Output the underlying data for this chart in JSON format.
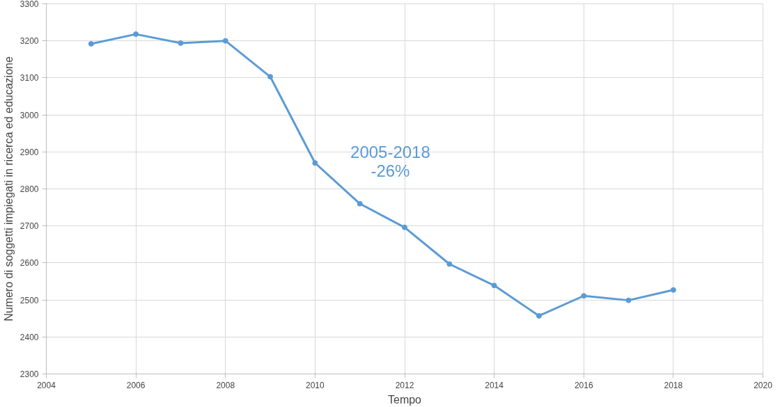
{
  "chart_data": {
    "type": "line",
    "xlabel": "Tempo",
    "ylabel": "Numero di soggetti impiegati in ricerca ed educazione",
    "x": [
      2005,
      2006,
      2007,
      2008,
      2009,
      2010,
      2011,
      2012,
      2013,
      2014,
      2015,
      2016,
      2017,
      2018
    ],
    "series": [
      {
        "color": "#5b9bd5",
        "values": [
          3192,
          3218,
          3194,
          3200,
          3103,
          2870,
          2760,
          2696,
          2597,
          2539,
          2457,
          2511,
          2499,
          2527
        ]
      }
    ],
    "xlim": [
      2004,
      2020
    ],
    "xticks": [
      2004,
      2006,
      2008,
      2010,
      2012,
      2014,
      2016,
      2018,
      2020
    ],
    "ylim": [
      2300,
      3300
    ],
    "yticks": [
      2300,
      2400,
      2500,
      2600,
      2700,
      2800,
      2900,
      3000,
      3100,
      3200,
      3300
    ],
    "annotations": [
      "2005-2018",
      "-26%"
    ],
    "grid": true,
    "marker": "circle",
    "line_style": "solid"
  }
}
